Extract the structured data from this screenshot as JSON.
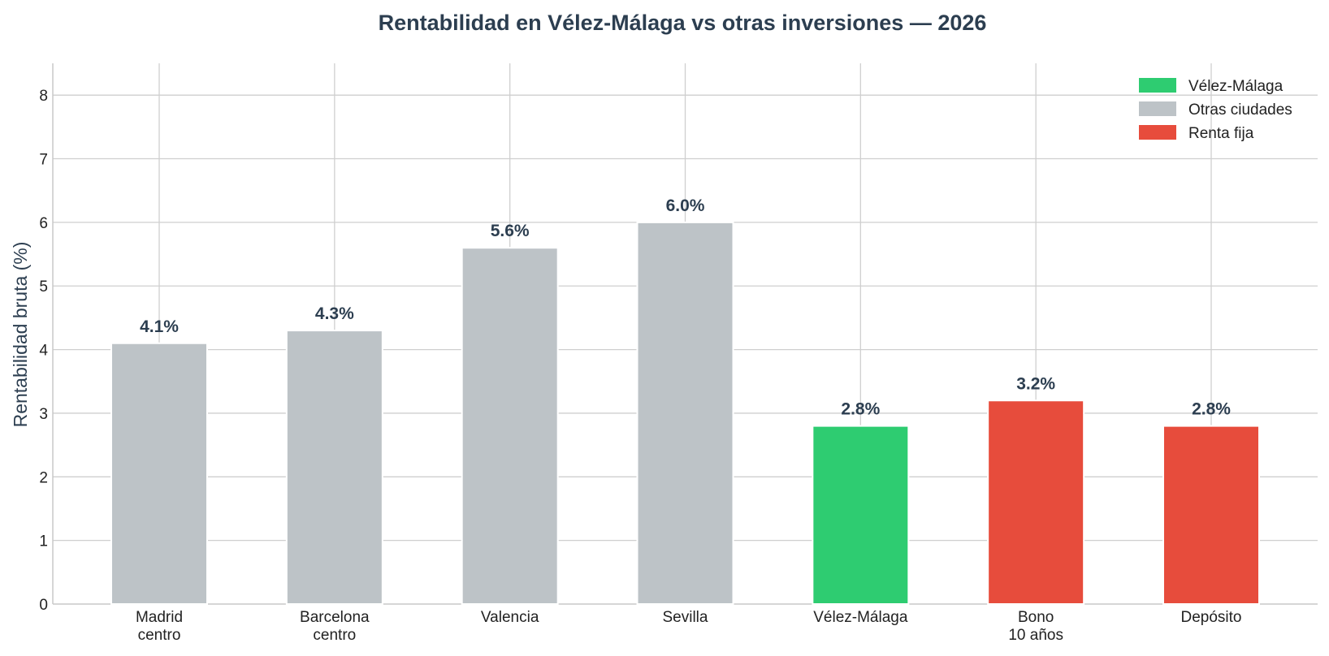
{
  "chart_data": {
    "type": "bar",
    "title": "Rentabilidad en Vélez-Málaga vs otras inversiones — 2026",
    "xlabel": "",
    "ylabel": "Rentabilidad bruta (%)",
    "ylim": [
      0,
      8.5
    ],
    "yticks": [
      "0",
      "1",
      "2",
      "3",
      "4",
      "5",
      "6",
      "7",
      "8"
    ],
    "categories": [
      [
        "Madrid",
        "centro"
      ],
      [
        "Barcelona",
        "centro"
      ],
      [
        "Valencia"
      ],
      [
        "Sevilla"
      ],
      [
        "Vélez-Málaga"
      ],
      [
        "Bono",
        "10 años"
      ],
      [
        "Depósito"
      ]
    ],
    "values": [
      4.1,
      4.3,
      5.6,
      6.0,
      2.8,
      3.2,
      2.8
    ],
    "data_labels": [
      "4.1%",
      "4.3%",
      "5.6%",
      "6.0%",
      "2.8%",
      "3.2%",
      "2.8%"
    ],
    "bar_groups": [
      1,
      1,
      1,
      1,
      0,
      2,
      2
    ],
    "legend": {
      "placement": "top-right",
      "entries": [
        {
          "label": "Vélez-Málaga",
          "color": "#2ecc71"
        },
        {
          "label": "Otras ciudades",
          "color": "#bdc3c7"
        },
        {
          "label": "Renta fija",
          "color": "#e74c3c"
        }
      ]
    },
    "grid": true
  }
}
